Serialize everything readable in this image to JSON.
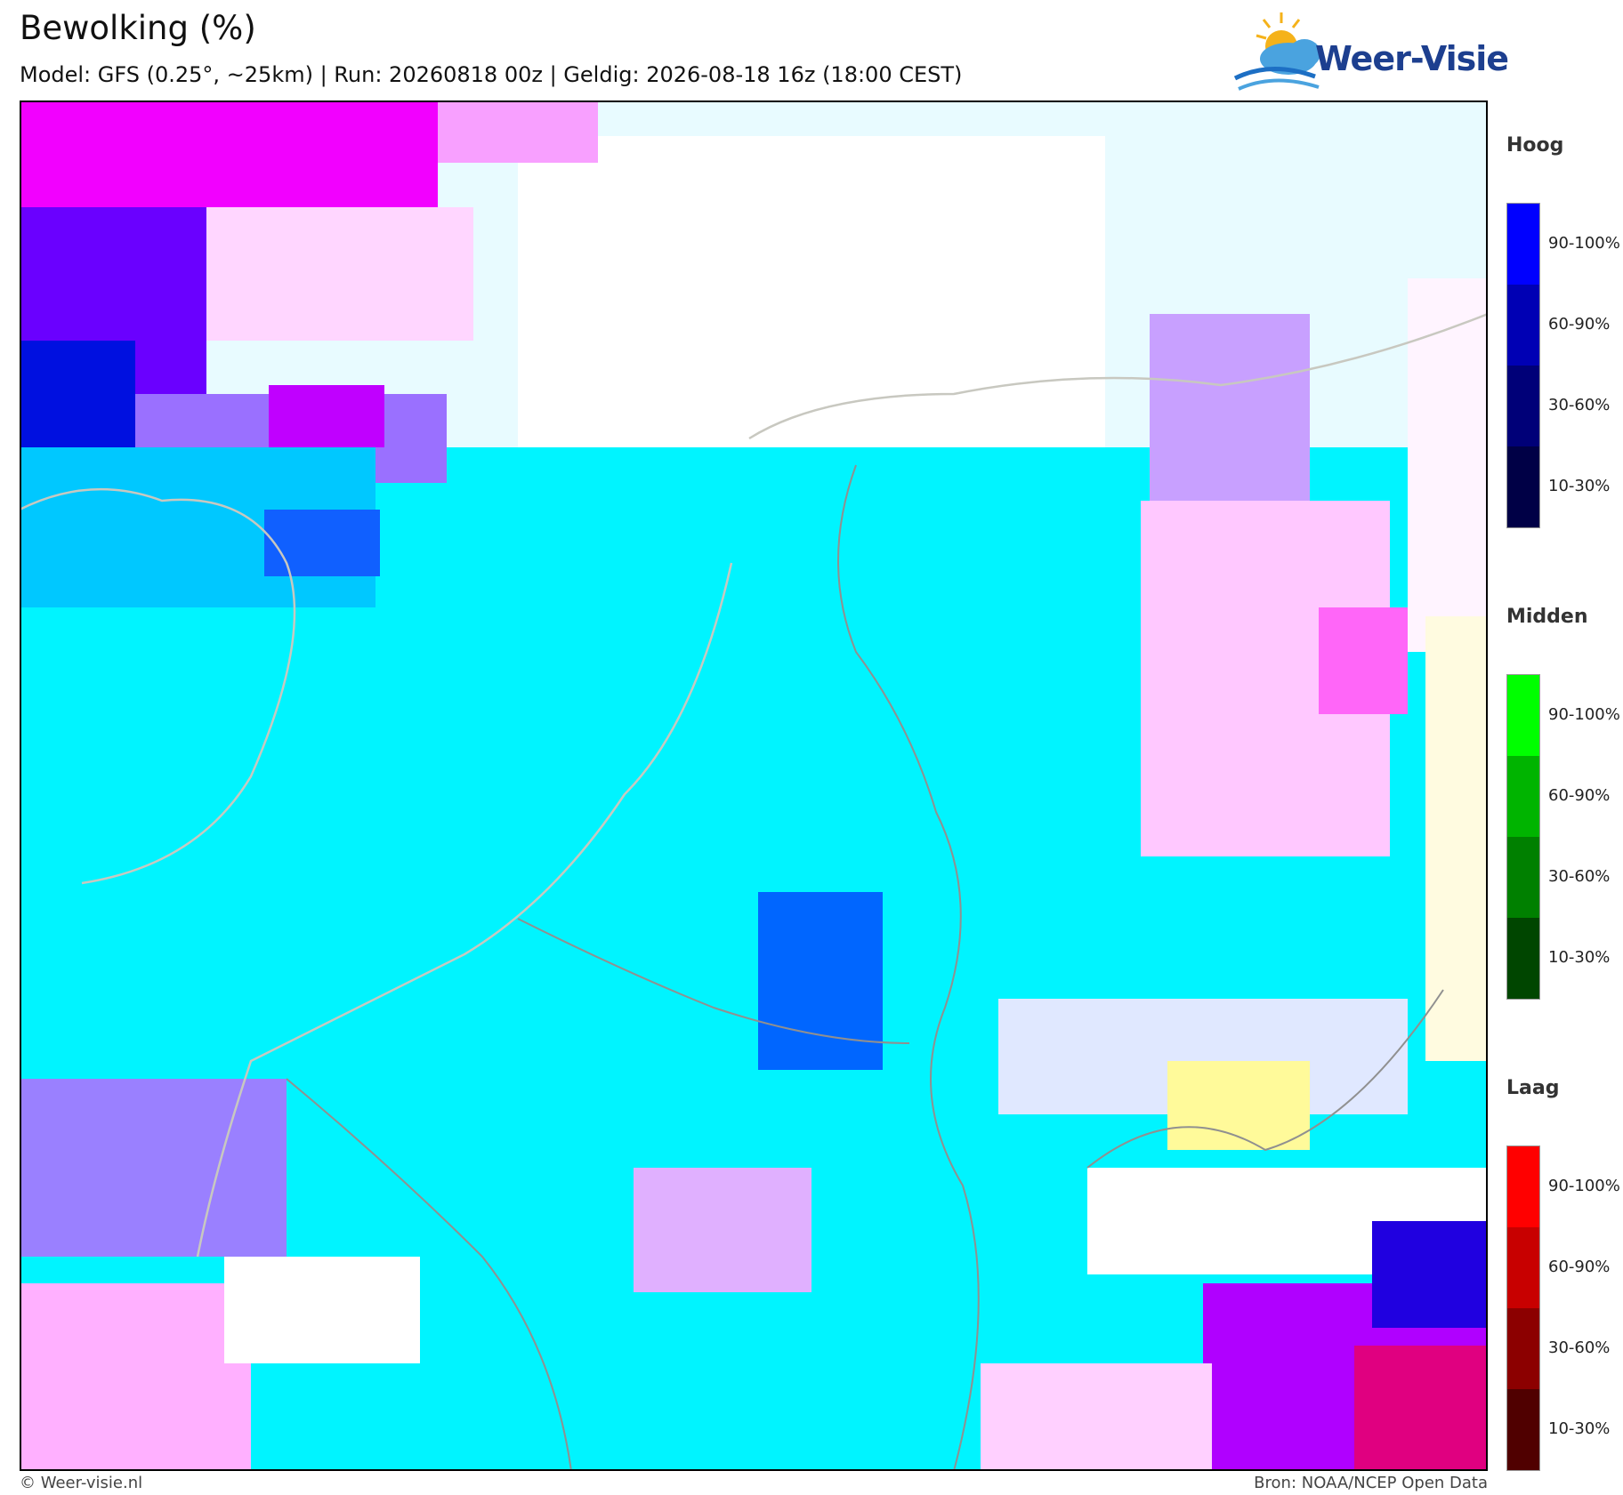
{
  "header": {
    "title": "Bewolking (%)",
    "subtitle": "Model: GFS (0.25°, ~25km)  |  Run: 20260818 00z  |  Geldig: 2026-08-18 16z (18:00 CEST)"
  },
  "logo": {
    "text": "Weer-Visie"
  },
  "legend": [
    {
      "title": "Hoog",
      "labels": [
        "90-100%",
        "60-90%",
        "30-60%",
        "10-30%"
      ],
      "colors": [
        "#0000ff",
        "#0000b4",
        "#000078",
        "#000046"
      ]
    },
    {
      "title": "Midden",
      "labels": [
        "90-100%",
        "60-90%",
        "30-60%",
        "10-30%"
      ],
      "colors": [
        "#00ff00",
        "#00b400",
        "#008000",
        "#004600"
      ]
    },
    {
      "title": "Laag",
      "labels": [
        "90-100%",
        "60-90%",
        "30-60%",
        "10-30%"
      ],
      "colors": [
        "#ff0000",
        "#c80000",
        "#8c0000",
        "#500000"
      ]
    }
  ],
  "footer": {
    "left": "© Weer-visie.nl",
    "right": "Bron: NOAA/NCEP Open Data"
  }
}
